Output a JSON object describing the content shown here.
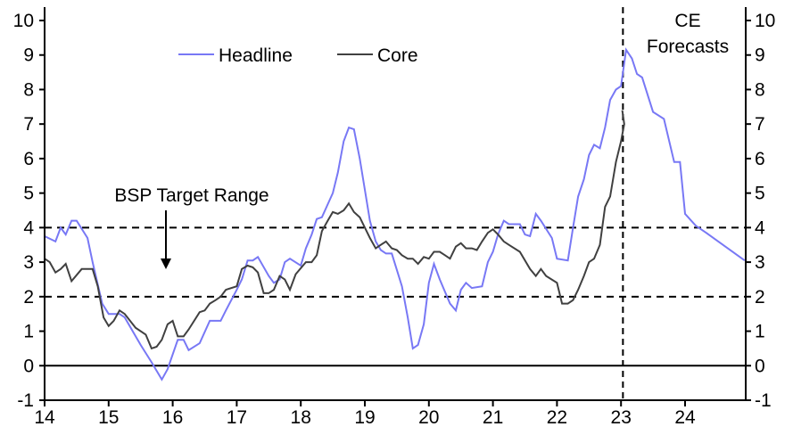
{
  "chart_data": {
    "type": "line",
    "title": "",
    "xlabel": "",
    "ylabel": "",
    "xlim": [
      14,
      24.95
    ],
    "ylim": [
      -1,
      10
    ],
    "x_ticks": [
      "14",
      "15",
      "16",
      "17",
      "18",
      "19",
      "20",
      "21",
      "22",
      "23",
      "24"
    ],
    "y_ticks": [
      "-1",
      "0",
      "1",
      "2",
      "3",
      "4",
      "5",
      "6",
      "7",
      "8",
      "9",
      "10"
    ],
    "legend": {
      "placement": "top-left",
      "entries": [
        "Headline",
        "Core"
      ]
    },
    "reference_lines": {
      "target_upper": 4,
      "target_lower": 2,
      "zero": 0,
      "forecast_start": 23.03
    },
    "annotations": {
      "target": "BSP Target Range",
      "forecast_line1": "CE",
      "forecast_line2": "Forecasts"
    },
    "series": [
      {
        "name": "Headline",
        "color": "#7878f5",
        "points": [
          [
            14.0,
            3.75
          ],
          [
            14.17,
            3.6
          ],
          [
            14.25,
            4.0
          ],
          [
            14.33,
            3.8
          ],
          [
            14.42,
            4.2
          ],
          [
            14.5,
            4.2
          ],
          [
            14.67,
            3.7
          ],
          [
            14.75,
            3.0
          ],
          [
            14.9,
            1.8
          ],
          [
            15.0,
            1.5
          ],
          [
            15.17,
            1.5
          ],
          [
            15.25,
            1.4
          ],
          [
            15.5,
            0.6
          ],
          [
            15.67,
            0.1
          ],
          [
            15.83,
            -0.4
          ],
          [
            15.92,
            -0.1
          ],
          [
            16.08,
            0.75
          ],
          [
            16.17,
            0.75
          ],
          [
            16.25,
            0.45
          ],
          [
            16.42,
            0.65
          ],
          [
            16.58,
            1.3
          ],
          [
            16.75,
            1.3
          ],
          [
            16.83,
            1.6
          ],
          [
            17.0,
            2.2
          ],
          [
            17.08,
            2.5
          ],
          [
            17.17,
            3.05
          ],
          [
            17.25,
            3.05
          ],
          [
            17.33,
            3.15
          ],
          [
            17.5,
            2.6
          ],
          [
            17.58,
            2.4
          ],
          [
            17.67,
            2.5
          ],
          [
            17.75,
            3.0
          ],
          [
            17.83,
            3.1
          ],
          [
            18.0,
            2.9
          ],
          [
            18.08,
            3.4
          ],
          [
            18.17,
            3.8
          ],
          [
            18.25,
            4.25
          ],
          [
            18.33,
            4.3
          ],
          [
            18.5,
            5.0
          ],
          [
            18.58,
            5.6
          ],
          [
            18.67,
            6.5
          ],
          [
            18.75,
            6.9
          ],
          [
            18.83,
            6.85
          ],
          [
            18.92,
            6.0
          ],
          [
            19.08,
            4.2
          ],
          [
            19.17,
            3.6
          ],
          [
            19.25,
            3.35
          ],
          [
            19.33,
            3.25
          ],
          [
            19.42,
            3.25
          ],
          [
            19.58,
            2.3
          ],
          [
            19.67,
            1.4
          ],
          [
            19.75,
            0.5
          ],
          [
            19.83,
            0.6
          ],
          [
            19.92,
            1.2
          ],
          [
            20.0,
            2.4
          ],
          [
            20.08,
            2.95
          ],
          [
            20.17,
            2.5
          ],
          [
            20.33,
            1.8
          ],
          [
            20.42,
            1.6
          ],
          [
            20.5,
            2.2
          ],
          [
            20.58,
            2.4
          ],
          [
            20.67,
            2.25
          ],
          [
            20.83,
            2.3
          ],
          [
            20.92,
            3.0
          ],
          [
            21.0,
            3.3
          ],
          [
            21.08,
            3.8
          ],
          [
            21.17,
            4.2
          ],
          [
            21.25,
            4.1
          ],
          [
            21.42,
            4.1
          ],
          [
            21.5,
            3.8
          ],
          [
            21.58,
            3.75
          ],
          [
            21.67,
            4.4
          ],
          [
            21.75,
            4.2
          ],
          [
            21.92,
            3.7
          ],
          [
            22.0,
            3.1
          ],
          [
            22.17,
            3.05
          ],
          [
            22.25,
            4.0
          ],
          [
            22.33,
            4.9
          ],
          [
            22.42,
            5.4
          ],
          [
            22.5,
            6.1
          ],
          [
            22.58,
            6.4
          ],
          [
            22.67,
            6.3
          ],
          [
            22.75,
            6.9
          ],
          [
            22.83,
            7.7
          ],
          [
            22.92,
            8.0
          ],
          [
            23.0,
            8.1
          ],
          [
            23.08,
            9.15
          ],
          [
            23.17,
            8.9
          ],
          [
            23.25,
            8.45
          ],
          [
            23.33,
            8.35
          ],
          [
            23.5,
            7.35
          ],
          [
            23.67,
            7.15
          ],
          [
            23.83,
            5.9
          ],
          [
            23.92,
            5.9
          ],
          [
            24.0,
            4.4
          ],
          [
            24.17,
            4.05
          ],
          [
            24.33,
            3.85
          ],
          [
            24.93,
            3.05
          ]
        ]
      },
      {
        "name": "Core",
        "color": "#404040",
        "points": [
          [
            14.0,
            3.1
          ],
          [
            14.08,
            3.0
          ],
          [
            14.17,
            2.7
          ],
          [
            14.25,
            2.8
          ],
          [
            14.33,
            2.95
          ],
          [
            14.42,
            2.45
          ],
          [
            14.58,
            2.8
          ],
          [
            14.75,
            2.8
          ],
          [
            14.83,
            2.3
          ],
          [
            14.92,
            1.4
          ],
          [
            15.0,
            1.15
          ],
          [
            15.08,
            1.3
          ],
          [
            15.17,
            1.6
          ],
          [
            15.25,
            1.5
          ],
          [
            15.42,
            1.1
          ],
          [
            15.58,
            0.9
          ],
          [
            15.67,
            0.5
          ],
          [
            15.75,
            0.55
          ],
          [
            15.83,
            0.75
          ],
          [
            15.92,
            1.2
          ],
          [
            16.0,
            1.3
          ],
          [
            16.08,
            0.85
          ],
          [
            16.17,
            0.85
          ],
          [
            16.25,
            1.05
          ],
          [
            16.42,
            1.55
          ],
          [
            16.5,
            1.6
          ],
          [
            16.58,
            1.8
          ],
          [
            16.67,
            1.9
          ],
          [
            16.75,
            2.0
          ],
          [
            16.83,
            2.2
          ],
          [
            17.0,
            2.3
          ],
          [
            17.08,
            2.8
          ],
          [
            17.17,
            2.9
          ],
          [
            17.25,
            2.85
          ],
          [
            17.33,
            2.7
          ],
          [
            17.42,
            2.1
          ],
          [
            17.5,
            2.1
          ],
          [
            17.58,
            2.2
          ],
          [
            17.67,
            2.6
          ],
          [
            17.75,
            2.5
          ],
          [
            17.83,
            2.2
          ],
          [
            17.92,
            2.65
          ],
          [
            18.08,
            3.0
          ],
          [
            18.17,
            3.0
          ],
          [
            18.25,
            3.2
          ],
          [
            18.33,
            3.9
          ],
          [
            18.42,
            4.2
          ],
          [
            18.5,
            4.45
          ],
          [
            18.58,
            4.4
          ],
          [
            18.67,
            4.5
          ],
          [
            18.75,
            4.7
          ],
          [
            18.83,
            4.45
          ],
          [
            18.92,
            4.3
          ],
          [
            19.08,
            3.7
          ],
          [
            19.17,
            3.4
          ],
          [
            19.25,
            3.5
          ],
          [
            19.33,
            3.6
          ],
          [
            19.42,
            3.4
          ],
          [
            19.5,
            3.35
          ],
          [
            19.58,
            3.2
          ],
          [
            19.67,
            3.1
          ],
          [
            19.75,
            3.1
          ],
          [
            19.83,
            2.95
          ],
          [
            19.92,
            3.15
          ],
          [
            20.0,
            3.1
          ],
          [
            20.08,
            3.3
          ],
          [
            20.17,
            3.3
          ],
          [
            20.25,
            3.2
          ],
          [
            20.33,
            3.1
          ],
          [
            20.42,
            3.45
          ],
          [
            20.5,
            3.55
          ],
          [
            20.58,
            3.4
          ],
          [
            20.67,
            3.4
          ],
          [
            20.75,
            3.35
          ],
          [
            20.83,
            3.6
          ],
          [
            20.92,
            3.85
          ],
          [
            21.0,
            3.95
          ],
          [
            21.08,
            3.8
          ],
          [
            21.17,
            3.6
          ],
          [
            21.25,
            3.5
          ],
          [
            21.42,
            3.3
          ],
          [
            21.58,
            2.8
          ],
          [
            21.67,
            2.6
          ],
          [
            21.75,
            2.8
          ],
          [
            21.83,
            2.6
          ],
          [
            22.0,
            2.4
          ],
          [
            22.08,
            1.8
          ],
          [
            22.17,
            1.8
          ],
          [
            22.25,
            1.9
          ],
          [
            22.33,
            2.2
          ],
          [
            22.42,
            2.6
          ],
          [
            22.5,
            3.0
          ],
          [
            22.58,
            3.1
          ],
          [
            22.67,
            3.5
          ],
          [
            22.75,
            4.6
          ],
          [
            22.83,
            4.9
          ],
          [
            22.92,
            5.9
          ],
          [
            23.0,
            6.5
          ],
          [
            23.05,
            7.0
          ],
          [
            23.02,
            7.4
          ]
        ]
      }
    ]
  }
}
